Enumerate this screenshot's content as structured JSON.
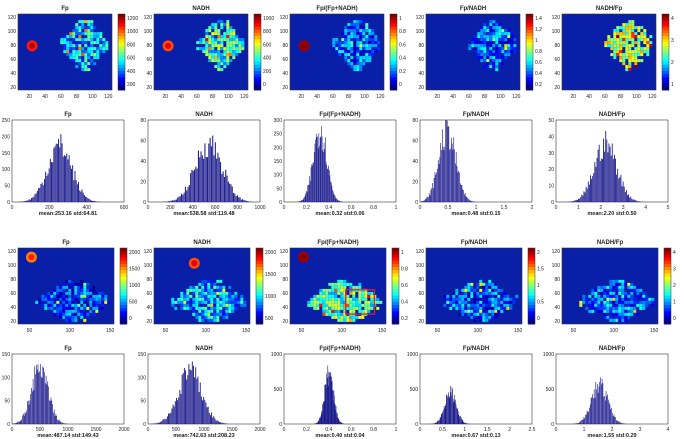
{
  "figure": {
    "caption": "Fp / NADH redox ratio maps and histograms for two samples"
  },
  "colors": {
    "map_bg": "#0a1fa8",
    "tissue": "#2e7fd9",
    "bar": "#1a1a8c",
    "roi": "#e0202a"
  },
  "chart_data": [
    {
      "type": "heatmap",
      "title": "Fp",
      "xticks": [
        "20",
        "40",
        "60",
        "80",
        "100",
        "120"
      ],
      "yticks": [
        "120",
        "100",
        "80",
        "60",
        "40",
        "20"
      ],
      "colorbar": [
        "1200",
        "1000",
        "800",
        "600",
        "400",
        "200"
      ],
      "cmax": 1200
    },
    {
      "type": "heatmap",
      "title": "NADH",
      "xticks": [
        "20",
        "40",
        "60",
        "80",
        "100",
        "120"
      ],
      "yticks": [
        "120",
        "100",
        "80",
        "60",
        "40",
        "20"
      ],
      "colorbar": [
        "1000",
        "800",
        "600",
        "400",
        "200",
        "0"
      ],
      "cmax": 1000
    },
    {
      "type": "heatmap",
      "title": "Fp/(Fp+NADH)",
      "xticks": [
        "20",
        "40",
        "60",
        "80",
        "100",
        "120"
      ],
      "yticks": [
        "120",
        "100",
        "80",
        "60",
        "40",
        "20"
      ],
      "colorbar": [
        "1",
        "0.8",
        "0.6",
        "0.4",
        "0.2",
        "0"
      ],
      "cmax": 1
    },
    {
      "type": "heatmap",
      "title": "Fp/NADH",
      "xticks": [
        "20",
        "40",
        "60",
        "80",
        "100",
        "120"
      ],
      "yticks": [
        "120",
        "100",
        "80",
        "60",
        "40",
        "20"
      ],
      "colorbar": [
        "1.4",
        "1.2",
        "1",
        "0.8",
        "0.6",
        "0.4",
        "0.2"
      ],
      "cmax": 1.4
    },
    {
      "type": "heatmap",
      "title": "NADH/Fp",
      "xticks": [
        "20",
        "40",
        "60",
        "80",
        "100",
        "120"
      ],
      "yticks": [
        "120",
        "100",
        "80",
        "60",
        "40",
        "20"
      ],
      "colorbar": [
        "4",
        "3",
        "2",
        "1"
      ],
      "cmax": 4
    },
    {
      "type": "bar",
      "title": "Fp",
      "xticks": [
        "0",
        "200",
        "400",
        "600"
      ],
      "xlim": [
        0,
        600
      ],
      "yticks": [
        "250",
        "200",
        "150",
        "100",
        "50",
        "0"
      ],
      "ylim": [
        0,
        250
      ],
      "mean": 253.16,
      "std": 64.81,
      "peak": 185,
      "stat": "mean:253.16 std:64.81"
    },
    {
      "type": "bar",
      "title": "NADH",
      "xticks": [
        "0",
        "200",
        "400",
        "600",
        "800",
        "1000"
      ],
      "xlim": [
        0,
        1000
      ],
      "yticks": [
        "80",
        "60",
        "40",
        "20",
        "0"
      ],
      "ylim": [
        0,
        80
      ],
      "mean": 538.58,
      "std": 119.48,
      "peak": 62,
      "stat": "mean:538.58 std:119.48"
    },
    {
      "type": "bar",
      "title": "Fp/(Fp+NADH)",
      "xticks": [
        "0",
        "0.2",
        "0.4",
        "0.6",
        "0.8",
        "1"
      ],
      "xlim": [
        0,
        1
      ],
      "yticks": [
        "300",
        "250",
        "200",
        "150",
        "100",
        "50",
        "0"
      ],
      "ylim": [
        0,
        300
      ],
      "mean": 0.32,
      "std": 0.06,
      "peak": 290,
      "stat": "mean:0.32 std:0.06"
    },
    {
      "type": "bar",
      "title": "Fp/NADH",
      "xticks": [
        "0",
        "0.5",
        "1",
        "1.5",
        "2"
      ],
      "xlim": [
        0,
        2
      ],
      "yticks": [
        "80",
        "60",
        "40",
        "20",
        "0"
      ],
      "ylim": [
        0,
        80
      ],
      "mean": 0.48,
      "std": 0.15,
      "peak": 75,
      "stat": "mean:0.48 std:0.15"
    },
    {
      "type": "bar",
      "title": "NADH/Fp",
      "xticks": [
        "0",
        "1",
        "2",
        "3",
        "4",
        "5"
      ],
      "xlim": [
        0,
        5
      ],
      "yticks": [
        "50",
        "40",
        "30",
        "20",
        "10",
        "0"
      ],
      "ylim": [
        0,
        50
      ],
      "mean": 2.2,
      "std": 0.5,
      "peak": 38,
      "stat": "mean:2.20 std:0.50"
    },
    {
      "type": "heatmap",
      "title": "Fp",
      "xticks": [
        "50",
        "100",
        "150"
      ],
      "yticks": [
        "120",
        "100",
        "80",
        "60",
        "40",
        "20"
      ],
      "colorbar": [
        "2000",
        "1500",
        "1000",
        "500",
        "0"
      ],
      "cmax": 2000
    },
    {
      "type": "heatmap",
      "title": "NADH",
      "xticks": [
        "50",
        "100",
        "150"
      ],
      "yticks": [
        "120",
        "100",
        "80",
        "60",
        "40",
        "20"
      ],
      "colorbar": [
        "2000",
        "1500",
        "1000",
        "500"
      ],
      "cmax": 2000
    },
    {
      "type": "heatmap",
      "title": "Fp/(Fp+NADH)",
      "xticks": [
        "50",
        "100",
        "150"
      ],
      "yticks": [
        "120",
        "100",
        "80",
        "60",
        "40",
        "20"
      ],
      "colorbar": [
        "1",
        "0.8",
        "0.6",
        "0.4",
        "0.2"
      ],
      "cmax": 1
    },
    {
      "type": "heatmap",
      "title": "Fp/NADH",
      "xticks": [
        "50",
        "100",
        "150"
      ],
      "yticks": [
        "120",
        "100",
        "80",
        "60",
        "40",
        "20"
      ],
      "colorbar": [
        "2",
        "1.5",
        "1",
        "0.5",
        "0"
      ],
      "cmax": 2
    },
    {
      "type": "heatmap",
      "title": "NADH/Fp",
      "xticks": [
        "50",
        "100",
        "150"
      ],
      "yticks": [
        "120",
        "100",
        "80",
        "60",
        "40",
        "20"
      ],
      "colorbar": [
        "4",
        "3",
        "2",
        "1",
        "0"
      ],
      "cmax": 4
    },
    {
      "type": "bar",
      "title": "Fp",
      "xticks": [
        "0",
        "500",
        "1000",
        "1500",
        "2000"
      ],
      "xlim": [
        0,
        2000
      ],
      "yticks": [
        "150",
        "100",
        "50",
        "0"
      ],
      "ylim": [
        0,
        150
      ],
      "mean": 487.14,
      "std": 149.43,
      "peak": 128,
      "stat": "mean:487.14 std:149.43"
    },
    {
      "type": "bar",
      "title": "NADH",
      "xticks": [
        "0",
        "500",
        "1000",
        "1500",
        "2000"
      ],
      "xlim": [
        0,
        2000
      ],
      "yticks": [
        "150",
        "100",
        "50",
        "0"
      ],
      "ylim": [
        0,
        150
      ],
      "mean": 742.63,
      "std": 208.23,
      "peak": 120,
      "stat": "mean:742.63 std:208.23"
    },
    {
      "type": "bar",
      "title": "Fp/(Fp+NADH)",
      "xticks": [
        "0",
        "0.2",
        "0.4",
        "0.6",
        "0.8",
        "1"
      ],
      "xlim": [
        0,
        1
      ],
      "yticks": [
        "1000",
        "500",
        "0"
      ],
      "ylim": [
        0,
        1000
      ],
      "mean": 0.4,
      "std": 0.04,
      "peak": 780,
      "stat": "mean:0.40 std:0.04"
    },
    {
      "type": "bar",
      "title": "Fp/NADH",
      "xticks": [
        "0",
        "0.5",
        "1",
        "1.5",
        "2",
        "2.5"
      ],
      "xlim": [
        0,
        2.5
      ],
      "yticks": [
        "1000",
        "500",
        "0"
      ],
      "ylim": [
        0,
        1000
      ],
      "mean": 0.67,
      "std": 0.13,
      "peak": 480,
      "stat": "mean:0.67 std:0.13"
    },
    {
      "type": "bar",
      "title": "NADH/Fp",
      "xticks": [
        "0",
        "1",
        "2",
        "3",
        "4"
      ],
      "xlim": [
        0,
        4
      ],
      "yticks": [
        "1000",
        "500",
        "0"
      ],
      "ylim": [
        0,
        1000
      ],
      "mean": 1.55,
      "std": 0.29,
      "peak": 600,
      "stat": "mean:1.55 std:0.29"
    }
  ]
}
